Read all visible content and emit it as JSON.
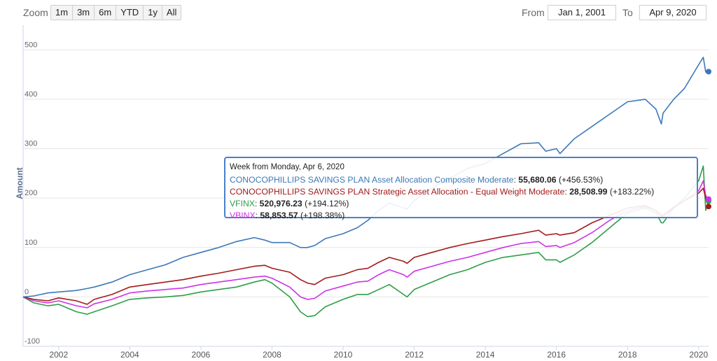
{
  "toolbar": {
    "zoom_label": "Zoom",
    "zoom_buttons": [
      "1m",
      "3m",
      "6m",
      "YTD",
      "1y",
      "All"
    ],
    "from_label": "From",
    "from_value": "Jan 1, 2001",
    "to_label": "To",
    "to_value": "Apr 9, 2020"
  },
  "tooltip": {
    "header": "Week from Monday, Apr 6, 2020",
    "rows": [
      {
        "name": "CONOCOPHILLIPS SAVINGS PLAN Asset Allocation Composite Moderate",
        "value": "55,680.06",
        "pct": "(+456.53%)",
        "color": "#3c78b8"
      },
      {
        "name": "CONOCOPHILLIPS SAVINGS PLAN Strategic Asset Allocation - Equal Weight Moderate",
        "value": "28,508.99",
        "pct": "(+183.22%)",
        "color": "#a31a1a"
      },
      {
        "name": "VFINX",
        "value": "520,976.23",
        "pct": "(+194.12%)",
        "color": "#2e9e48"
      },
      {
        "name": "VBINX",
        "value": "58,853.57",
        "pct": "(+198.38%)",
        "color": "#cc33e6"
      }
    ]
  },
  "chart_data": {
    "type": "line",
    "title": "",
    "xlabel": "",
    "ylabel": "Amount",
    "ylim": [
      -100,
      550
    ],
    "yticks": [
      -100,
      0,
      100,
      200,
      300,
      400,
      500
    ],
    "xlim": [
      2001.0,
      2020.28
    ],
    "xticks": [
      2002,
      2004,
      2006,
      2008,
      2010,
      2012,
      2014,
      2016,
      2018,
      2020
    ],
    "grid": true,
    "series": [
      {
        "name": "CONOCOPHILLIPS SAVINGS PLAN Asset Allocation Composite Moderate",
        "color": "#3c78b8",
        "x": [
          2001.0,
          2001.3,
          2001.7,
          2002.0,
          2002.5,
          2002.8,
          2003.0,
          2003.5,
          2004.0,
          2004.5,
          2005.0,
          2005.5,
          2006.0,
          2006.5,
          2007.0,
          2007.5,
          2007.8,
          2008.0,
          2008.5,
          2008.8,
          2009.0,
          2009.2,
          2009.5,
          2010.0,
          2010.4,
          2010.7,
          2011.0,
          2011.3,
          2011.7,
          2011.8,
          2012.0,
          2012.5,
          2013.0,
          2013.5,
          2014.0,
          2014.5,
          2015.0,
          2015.5,
          2015.7,
          2016.0,
          2016.1,
          2016.5,
          2017.0,
          2017.5,
          2018.0,
          2018.5,
          2018.8,
          2018.95,
          2019.0,
          2019.3,
          2019.6,
          2020.0,
          2020.13,
          2020.2,
          2020.28
        ],
        "values": [
          0,
          2,
          8,
          10,
          13,
          17,
          20,
          30,
          45,
          55,
          65,
          80,
          90,
          100,
          112,
          120,
          115,
          110,
          110,
          100,
          100,
          104,
          118,
          128,
          140,
          155,
          175,
          190,
          180,
          178,
          195,
          220,
          240,
          260,
          270,
          290,
          310,
          312,
          295,
          300,
          290,
          320,
          345,
          370,
          395,
          400,
          380,
          350,
          372,
          400,
          422,
          470,
          485,
          455,
          456
        ]
      },
      {
        "name": "CONOCOPHILLIPS SAVINGS PLAN Strategic Asset Allocation - Equal Weight Moderate",
        "color": "#a31a1a",
        "x": [
          2001.0,
          2001.3,
          2001.7,
          2002.0,
          2002.5,
          2002.8,
          2003.0,
          2003.5,
          2004.0,
          2004.5,
          2005.0,
          2005.5,
          2006.0,
          2006.5,
          2007.0,
          2007.5,
          2007.8,
          2008.0,
          2008.5,
          2008.8,
          2009.0,
          2009.2,
          2009.5,
          2010.0,
          2010.4,
          2010.7,
          2011.0,
          2011.3,
          2011.7,
          2011.8,
          2012.0,
          2012.5,
          2013.0,
          2013.5,
          2014.0,
          2014.5,
          2015.0,
          2015.5,
          2015.7,
          2016.0,
          2016.1,
          2016.5,
          2017.0,
          2017.5,
          2018.0,
          2018.5,
          2018.8,
          2018.95,
          2019.0,
          2019.3,
          2019.6,
          2020.0,
          2020.13,
          2020.2,
          2020.28
        ],
        "values": [
          0,
          -5,
          -8,
          -2,
          -8,
          -15,
          -5,
          5,
          20,
          25,
          30,
          35,
          42,
          48,
          55,
          62,
          64,
          58,
          50,
          35,
          28,
          25,
          38,
          45,
          55,
          58,
          70,
          80,
          72,
          68,
          80,
          90,
          100,
          108,
          115,
          122,
          128,
          135,
          125,
          128,
          125,
          130,
          150,
          165,
          180,
          185,
          175,
          165,
          165,
          182,
          195,
          210,
          220,
          200,
          183
        ]
      },
      {
        "name": "VFINX",
        "color": "#2e9e48",
        "x": [
          2001.0,
          2001.3,
          2001.7,
          2002.0,
          2002.5,
          2002.8,
          2003.0,
          2003.5,
          2004.0,
          2004.5,
          2005.0,
          2005.5,
          2006.0,
          2006.5,
          2007.0,
          2007.5,
          2007.8,
          2008.0,
          2008.5,
          2008.8,
          2009.0,
          2009.2,
          2009.5,
          2010.0,
          2010.4,
          2010.7,
          2011.0,
          2011.3,
          2011.7,
          2011.8,
          2012.0,
          2012.5,
          2013.0,
          2013.5,
          2014.0,
          2014.5,
          2015.0,
          2015.5,
          2015.7,
          2016.0,
          2016.1,
          2016.5,
          2017.0,
          2017.5,
          2018.0,
          2018.5,
          2018.8,
          2018.95,
          2019.0,
          2019.3,
          2019.6,
          2020.0,
          2020.13,
          2020.2,
          2020.28
        ],
        "values": [
          0,
          -12,
          -18,
          -15,
          -30,
          -35,
          -30,
          -18,
          -5,
          -2,
          0,
          3,
          10,
          15,
          20,
          30,
          35,
          28,
          0,
          -30,
          -40,
          -38,
          -20,
          -5,
          5,
          5,
          15,
          25,
          5,
          0,
          15,
          30,
          45,
          55,
          70,
          80,
          85,
          90,
          75,
          75,
          70,
          85,
          110,
          140,
          170,
          180,
          170,
          150,
          150,
          180,
          200,
          235,
          265,
          175,
          194
        ]
      },
      {
        "name": "VBINX",
        "color": "#cc33e6",
        "x": [
          2001.0,
          2001.3,
          2001.7,
          2002.0,
          2002.5,
          2002.8,
          2003.0,
          2003.5,
          2004.0,
          2004.5,
          2005.0,
          2005.5,
          2006.0,
          2006.5,
          2007.0,
          2007.5,
          2007.8,
          2008.0,
          2008.5,
          2008.8,
          2009.0,
          2009.2,
          2009.5,
          2010.0,
          2010.4,
          2010.7,
          2011.0,
          2011.3,
          2011.7,
          2011.8,
          2012.0,
          2012.5,
          2013.0,
          2013.5,
          2014.0,
          2014.5,
          2015.0,
          2015.5,
          2015.7,
          2016.0,
          2016.1,
          2016.5,
          2017.0,
          2017.5,
          2018.0,
          2018.5,
          2018.8,
          2018.95,
          2019.0,
          2019.3,
          2019.6,
          2020.0,
          2020.13,
          2020.2,
          2020.28
        ],
        "values": [
          0,
          -8,
          -12,
          -8,
          -18,
          -22,
          -14,
          -5,
          8,
          12,
          15,
          18,
          25,
          30,
          35,
          40,
          42,
          38,
          20,
          0,
          -5,
          -3,
          12,
          22,
          30,
          32,
          45,
          55,
          45,
          40,
          52,
          62,
          72,
          80,
          90,
          100,
          108,
          112,
          102,
          104,
          100,
          110,
          130,
          155,
          175,
          183,
          175,
          162,
          162,
          180,
          195,
          215,
          235,
          205,
          198
        ]
      }
    ]
  }
}
